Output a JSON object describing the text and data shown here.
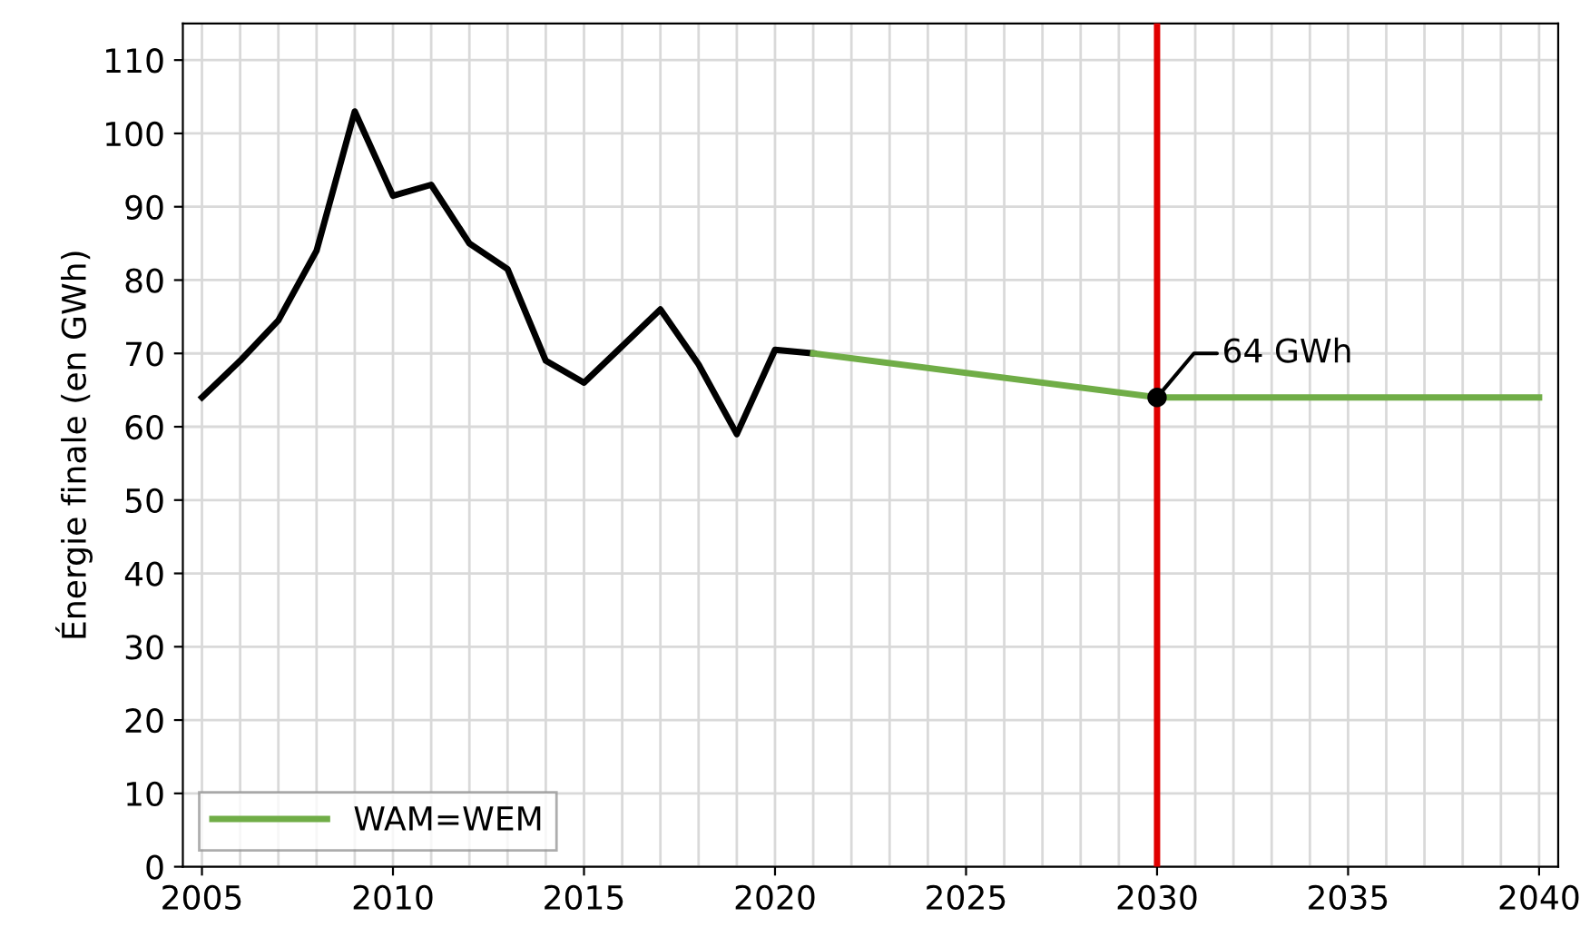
{
  "chart_data": {
    "type": "line",
    "ylabel": "Énergie finale (en GWh)",
    "series": [
      {
        "color": "#000000",
        "x": [
          2005,
          2006,
          2007,
          2008,
          2009,
          2010,
          2011,
          2012,
          2013,
          2014,
          2015,
          2016,
          2017,
          2018,
          2019,
          2020,
          2021
        ],
        "values": [
          64,
          69,
          74.5,
          84,
          103,
          91.5,
          93,
          85,
          81.5,
          69,
          66,
          71,
          76,
          68.5,
          59,
          70.5,
          70
        ]
      },
      {
        "name": "WAM=WEM",
        "color": "#70ad47",
        "x": [
          2021,
          2030,
          2040
        ],
        "values": [
          70,
          64,
          64
        ]
      },
      {
        "type": "scatter",
        "color": "#000000",
        "x": [
          2030
        ],
        "values": [
          64
        ]
      }
    ],
    "annotations": [
      {
        "text": "64 GWh",
        "x": 2030,
        "y": 64
      }
    ],
    "ref_lines": [
      {
        "axis": "x",
        "value": 2030,
        "color": "#e00000"
      }
    ],
    "xlim": [
      2004.5,
      2040.5
    ],
    "ylim": [
      0,
      115
    ],
    "xticks": [
      2005,
      {
        "value": 2006,
        "label": null
      },
      {
        "value": 2007,
        "label": null
      },
      {
        "value": 2008,
        "label": null
      },
      {
        "value": 2009,
        "label": null
      },
      2010,
      {
        "value": 2011,
        "label": null
      },
      {
        "value": 2012,
        "label": null
      },
      {
        "value": 2013,
        "label": null
      },
      {
        "value": 2014,
        "label": null
      },
      2015,
      {
        "value": 2016,
        "label": null
      },
      {
        "value": 2017,
        "label": null
      },
      {
        "value": 2018,
        "label": null
      },
      {
        "value": 2019,
        "label": null
      },
      2020,
      {
        "value": 2021,
        "label": null
      },
      {
        "value": 2022,
        "label": null
      },
      {
        "value": 2023,
        "label": null
      },
      {
        "value": 2024,
        "label": null
      },
      2025,
      {
        "value": 2026,
        "label": null
      },
      {
        "value": 2027,
        "label": null
      },
      {
        "value": 2028,
        "label": null
      },
      {
        "value": 2029,
        "label": null
      },
      2030,
      {
        "value": 2031,
        "label": null
      },
      {
        "value": 2032,
        "label": null
      },
      {
        "value": 2033,
        "label": null
      },
      {
        "value": 2034,
        "label": null
      },
      2035,
      {
        "value": 2036,
        "label": null
      },
      {
        "value": 2037,
        "label": null
      },
      {
        "value": 2038,
        "label": null
      },
      {
        "value": 2039,
        "label": null
      },
      2040
    ],
    "yticks": [
      0,
      10,
      20,
      30,
      40,
      50,
      60,
      70,
      80,
      90,
      100,
      110
    ],
    "grid": true,
    "legend": "bottom left",
    "line_style": "solid"
  }
}
